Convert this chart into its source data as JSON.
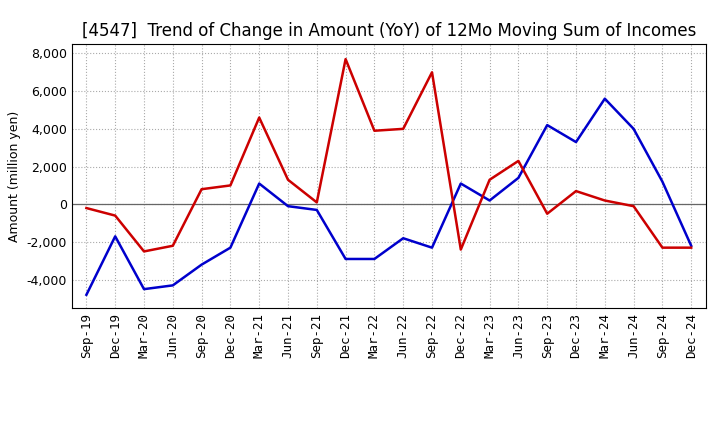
{
  "title": "[4547]  Trend of Change in Amount (YoY) of 12Mo Moving Sum of Incomes",
  "ylabel": "Amount (million yen)",
  "x_labels": [
    "Sep-19",
    "Dec-19",
    "Mar-20",
    "Jun-20",
    "Sep-20",
    "Dec-20",
    "Mar-21",
    "Jun-21",
    "Sep-21",
    "Dec-21",
    "Mar-22",
    "Jun-22",
    "Sep-22",
    "Dec-22",
    "Mar-23",
    "Jun-23",
    "Sep-23",
    "Dec-23",
    "Mar-24",
    "Jun-24",
    "Sep-24",
    "Dec-24"
  ],
  "ordinary_income": [
    -4800,
    -1700,
    -4500,
    -4300,
    -3200,
    -2300,
    1100,
    -100,
    -300,
    -2900,
    -2900,
    -1800,
    -2300,
    1100,
    200,
    1400,
    4200,
    3300,
    5600,
    4000,
    1200,
    -2200
  ],
  "net_income": [
    -200,
    -600,
    -2500,
    -2200,
    800,
    1000,
    4600,
    1300,
    100,
    7700,
    3900,
    4000,
    7000,
    -2400,
    1300,
    2300,
    -500,
    700,
    200,
    -100,
    -2300,
    -2300
  ],
  "ordinary_color": "#0000cc",
  "net_color": "#cc0000",
  "ylim": [
    -5500,
    8500
  ],
  "yticks": [
    -4000,
    -2000,
    0,
    2000,
    4000,
    6000,
    8000
  ],
  "background_color": "#ffffff",
  "grid_color": "#aaaaaa",
  "title_fontsize": 12,
  "axis_fontsize": 9,
  "legend_fontsize": 10,
  "line_width": 1.8
}
